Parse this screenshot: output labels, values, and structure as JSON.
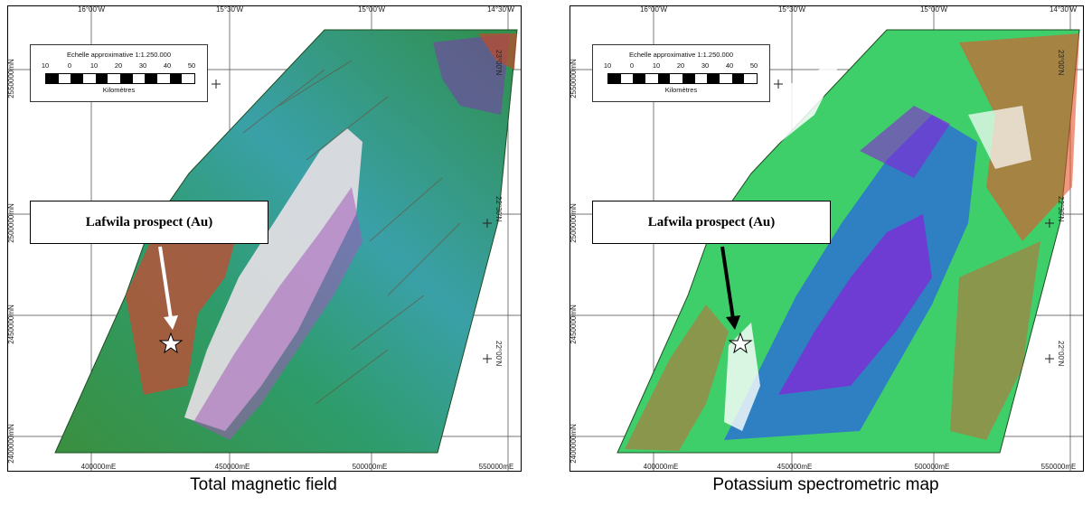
{
  "panels": [
    {
      "caption": "Total magnetic field",
      "callout": "Lafwila prospect (Au)",
      "arrow_color": "#ffffff"
    },
    {
      "caption": "Potassium spectrometric map",
      "callout": "Lafwila prospect (Au)",
      "arrow_color": "#000000"
    }
  ],
  "scalebar": {
    "title": "Echelle approximative 1:1.250.000",
    "numbers": [
      "10",
      "0",
      "10",
      "20",
      "30",
      "40",
      "50"
    ],
    "unit": "Kilomètres"
  },
  "grid_labels": {
    "top": [
      "16°00'W",
      "15°30'W",
      "15°00'W",
      "14°30'W"
    ],
    "bottom": [
      "400000mE",
      "450000mE",
      "500000mE",
      "550000mE"
    ],
    "left": [
      "2550000mN",
      "2500000mN",
      "2450000mN",
      "2400000mN"
    ],
    "right": [
      "23°00'N",
      "22°30'N",
      "22°00'N"
    ]
  },
  "colors": {
    "magnetic_base": "#2f9a4a",
    "potassium_base": "#3fcf6a"
  },
  "icons": {
    "prospect_marker": "star-icon"
  }
}
